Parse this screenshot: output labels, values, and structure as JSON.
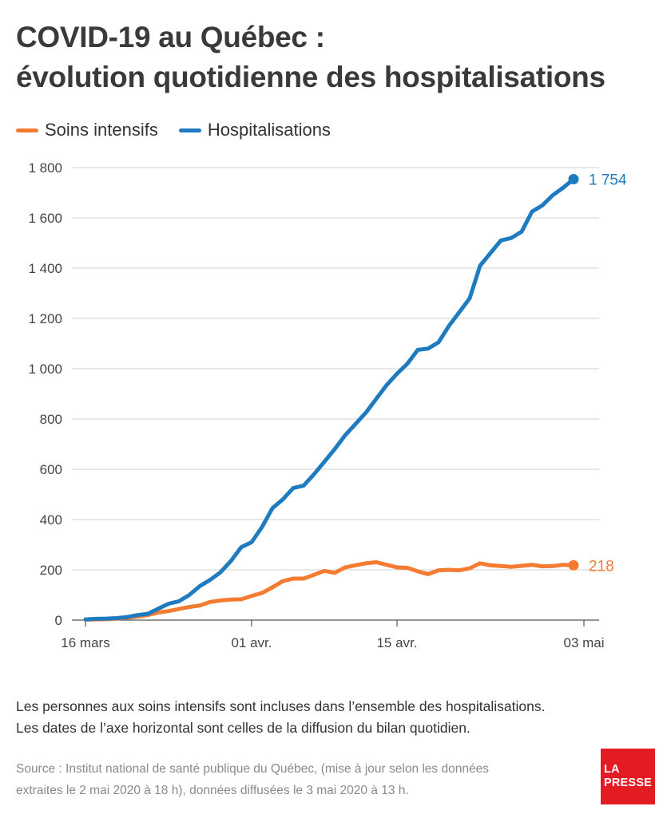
{
  "header": {
    "title_line1": "COVID-19 au Québec :",
    "title_line2": "évolution quotidienne des hospitalisations"
  },
  "legend": [
    {
      "name": "Soins intensifs",
      "color": "#f47b32"
    },
    {
      "name": "Hospitalisations",
      "color": "#1f7bbf"
    }
  ],
  "footer": {
    "note_line1": "Les personnes aux soins intensifs sont incluses dans l’ensemble des hospitalisations.",
    "note_line2": "Les dates de l’axe horizontal sont celles de la diffusion du bilan quotidien.",
    "source_line1": "Source : Institut national de santé publique du Québec, (mise à jour selon les données",
    "source_line2": "extraites le 2 mai 2020 à 18 h), données diffusées le 3 mai 2020 à 13 h.",
    "logo_line1": "LA",
    "logo_line2": "PRESSE"
  },
  "chart_data": {
    "type": "line",
    "x_start": "2020-03-16",
    "xticks": [
      {
        "label": "16 mars",
        "day": 0
      },
      {
        "label": "01 avr.",
        "day": 16
      },
      {
        "label": "15 avr.",
        "day": 30
      },
      {
        "label": "03 mai",
        "day": 48
      }
    ],
    "ylim": [
      0,
      1800
    ],
    "yticks": [
      {
        "value": 0,
        "label": "0"
      },
      {
        "value": 200,
        "label": "200"
      },
      {
        "value": 400,
        "label": "400"
      },
      {
        "value": 600,
        "label": "600"
      },
      {
        "value": 800,
        "label": "800"
      },
      {
        "value": 1000,
        "label": "1 000"
      },
      {
        "value": 1200,
        "label": "1 200"
      },
      {
        "value": 1400,
        "label": "1 400"
      },
      {
        "value": 1600,
        "label": "1 600"
      },
      {
        "value": 1800,
        "label": "1 800"
      }
    ],
    "grid": true,
    "series": [
      {
        "name": "Soins intensifs",
        "color": "#f47b32",
        "end_label": "218",
        "values": [
          2,
          3,
          4,
          6,
          10,
          14,
          20,
          30,
          36,
          44,
          52,
          58,
          72,
          78,
          82,
          83,
          96,
          108,
          130,
          155,
          165,
          165,
          180,
          196,
          188,
          210,
          218,
          226,
          230,
          220,
          210,
          208,
          194,
          183,
          198,
          200,
          198,
          206,
          226,
          218,
          215,
          212,
          216,
          220,
          214,
          215,
          220,
          218
        ]
      },
      {
        "name": "Hospitalisations",
        "color": "#1f7bbf",
        "end_label": "1 754",
        "values": [
          3,
          5,
          6,
          8,
          12,
          20,
          25,
          45,
          65,
          75,
          100,
          135,
          160,
          190,
          235,
          290,
          310,
          370,
          445,
          480,
          525,
          535,
          580,
          630,
          680,
          735,
          780,
          825,
          880,
          935,
          980,
          1020,
          1075,
          1080,
          1105,
          1170,
          1225,
          1280,
          1410,
          1460,
          1510,
          1520,
          1545,
          1625,
          1650,
          1690,
          1720,
          1754
        ]
      }
    ]
  }
}
